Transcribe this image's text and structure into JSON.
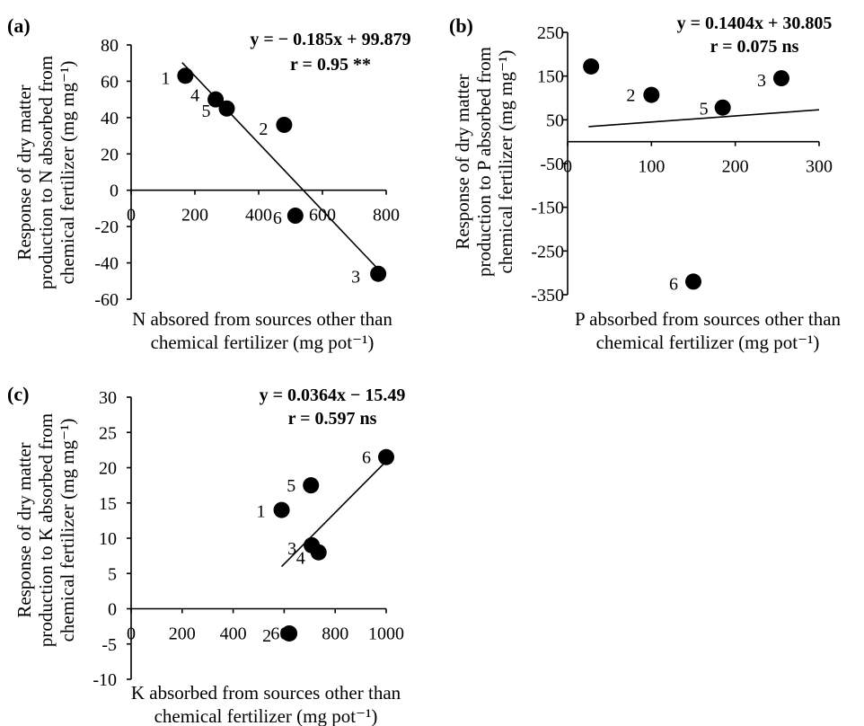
{
  "chart_data": [
    {
      "type": "scatter",
      "panel": "(a)",
      "xlabel": [
        "N absored from sources other than",
        "chemical fertilizer (mg pot⁻¹)"
      ],
      "ylabel": [
        "Response of dry matter",
        "production to N absorbed from",
        "chemical fertilizer (mg mg⁻¹)"
      ],
      "xlim": [
        0,
        800
      ],
      "ylim": [
        -60,
        80
      ],
      "xticks": [
        0,
        200,
        400,
        600,
        800
      ],
      "yticks": [
        80,
        60,
        40,
        20,
        0,
        -20,
        -40,
        -60
      ],
      "points": [
        {
          "label": "1",
          "x": 170,
          "y": 63
        },
        {
          "label": "4",
          "x": 265,
          "y": 50
        },
        {
          "label": "5",
          "x": 300,
          "y": 45
        },
        {
          "label": "2",
          "x": 480,
          "y": 36
        },
        {
          "label": "6",
          "x": 515,
          "y": -14
        },
        {
          "label": "3",
          "x": 775,
          "y": -46
        }
      ],
      "fit": {
        "slope": -0.185,
        "intercept": 99.879,
        "x_range": [
          160,
          780
        ]
      },
      "equation": "y = − 0.185x + 99.879",
      "r_text": "r = 0.95 **"
    },
    {
      "type": "scatter",
      "panel": "(b)",
      "xlabel": [
        "P absorbed from sources other than",
        "chemical fertilizer (mg pot⁻¹)"
      ],
      "ylabel": [
        "Response of dry matter",
        "production to P absorbed from",
        "chemical fertilizer (mg mg⁻¹)"
      ],
      "xlim": [
        0,
        300
      ],
      "ylim": [
        -350,
        250
      ],
      "xticks": [
        0,
        100,
        200,
        300
      ],
      "yticks": [
        250,
        150,
        50,
        -50,
        -150,
        -250,
        -350
      ],
      "points": [
        {
          "label": "",
          "x": 28,
          "y": 172
        },
        {
          "label": "2",
          "x": 100,
          "y": 107
        },
        {
          "label": "5",
          "x": 185,
          "y": 78
        },
        {
          "label": "3",
          "x": 255,
          "y": 145
        },
        {
          "label": "6",
          "x": 150,
          "y": -320
        }
      ],
      "fit": {
        "slope": 0.1404,
        "intercept": 30.805,
        "x_range": [
          25,
          300
        ]
      },
      "equation": "y = 0.1404x + 30.805",
      "r_text": "r = 0.075 ns"
    },
    {
      "type": "scatter",
      "panel": "(c)",
      "xlabel": [
        "K absorbed from sources other than",
        "chemical fertilizer (mg pot⁻¹)"
      ],
      "ylabel": [
        "Response of dry matter",
        "production to K absorbed from",
        "chemical fertilizer (mg mg⁻¹)"
      ],
      "xlim": [
        0,
        1000
      ],
      "ylim": [
        -10,
        30
      ],
      "xticks": [
        0,
        200,
        400,
        600,
        800,
        1000
      ],
      "yticks": [
        30,
        25,
        20,
        15,
        10,
        5,
        0,
        -5,
        -10
      ],
      "points": [
        {
          "label": "1",
          "x": 590,
          "y": 14
        },
        {
          "label": "5",
          "x": 705,
          "y": 17.5
        },
        {
          "label": "3",
          "x": 708,
          "y": 9
        },
        {
          "label": "4",
          "x": 735,
          "y": 8
        },
        {
          "label": "2",
          "x": 620,
          "y": -3.5
        },
        {
          "label": "6",
          "x": 1000,
          "y": 21.5
        }
      ],
      "fit": {
        "slope": 0.0364,
        "intercept": -15.49,
        "x_range": [
          590,
          1000
        ]
      },
      "equation": "y = 0.0364x − 15.49",
      "r_text": "r = 0.597 ns"
    }
  ]
}
